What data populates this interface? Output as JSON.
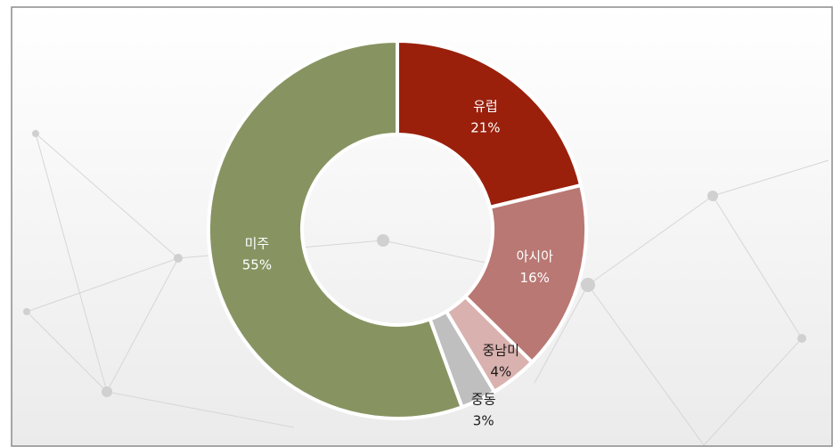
{
  "chart_data": {
    "type": "pie",
    "categories": [
      "유럽",
      "아시아",
      "중남미",
      "중동",
      "미주"
    ],
    "values": [
      21,
      16,
      4,
      3,
      55
    ],
    "value_labels": [
      "21%",
      "16%",
      "4%",
      "3%",
      "55%"
    ],
    "colors": [
      "#9a200c",
      "#b97873",
      "#d9b1ae",
      "#bfbfbf",
      "#879462"
    ]
  }
}
